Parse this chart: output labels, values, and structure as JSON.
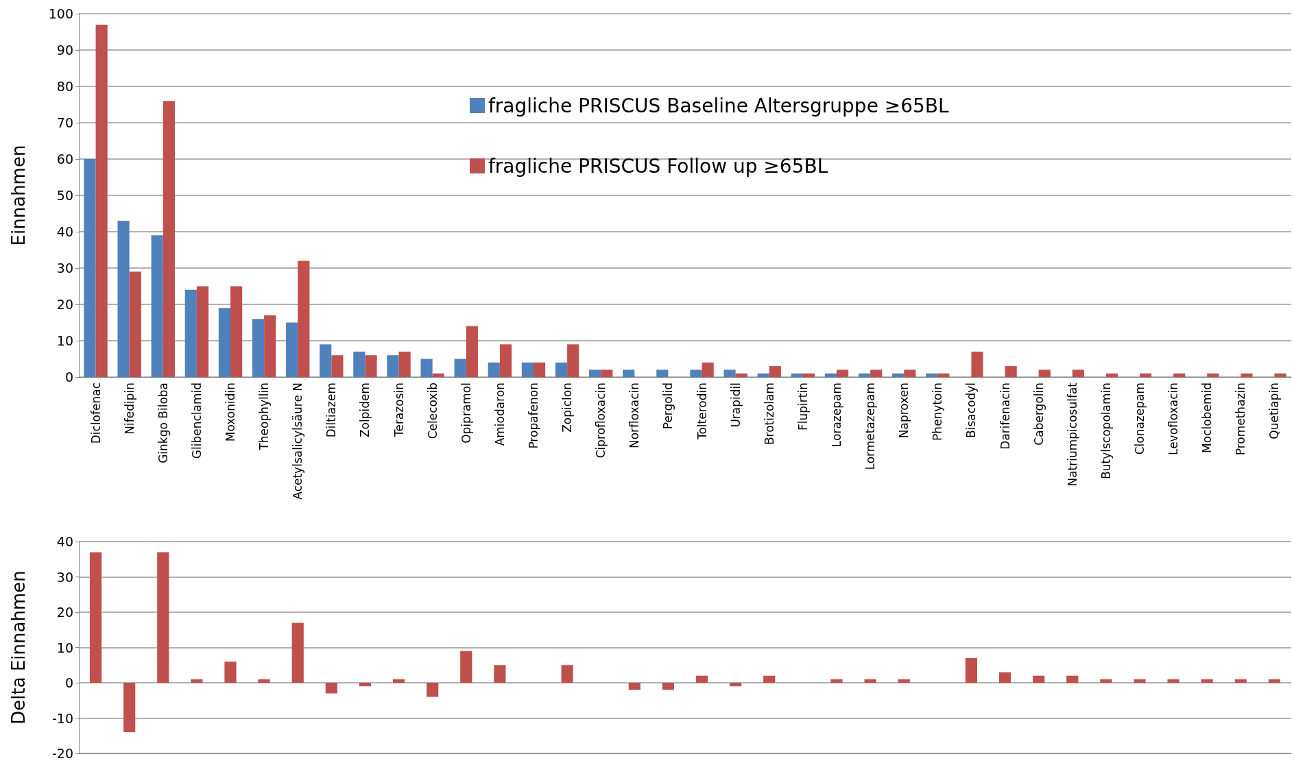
{
  "chart_data": [
    {
      "type": "bar",
      "ylabel": "Einnahmen",
      "categories": [
        "Diclofenac",
        "Nifedipin",
        "Ginkgo Biloba",
        "Glibenclamid",
        "Moxonidin",
        "Theophyllin",
        "Acetylsalicylsäure N",
        "Diltiazem",
        "Zolpidem",
        "Terazosin",
        "Celecoxib",
        "Opipramol",
        "Amiodaron",
        "Propafenon",
        "Zopiclon",
        "Ciprofloxacin",
        "Norfloxacin",
        "Pergolid",
        "Tolterodin",
        "Urapidil",
        "Brotizolam",
        "Flupirtin",
        "Lorazepam",
        "Lormetazepam",
        "Naproxen",
        "Phenytoin",
        "Bisacodyl",
        "Darifenacin",
        "Cabergolin",
        "Natriumpicosulfat",
        "Butylscopolamin",
        "Clonazepam",
        "Levofloxacin",
        "Moclobemid",
        "Promethazin",
        "Quetiapin"
      ],
      "series": [
        {
          "name": "fragliche PRISCUS Baseline Altersgruppe ≥65BL",
          "color": "#4f81bd",
          "values": [
            60,
            43,
            39,
            24,
            19,
            16,
            15,
            9,
            7,
            6,
            5,
            5,
            4,
            4,
            4,
            2,
            2,
            2,
            2,
            2,
            1,
            1,
            1,
            1,
            1,
            1,
            0,
            0,
            0,
            0,
            0,
            0,
            0,
            0,
            0,
            0
          ]
        },
        {
          "name": "fragliche PRISCUS Follow up ≥65BL",
          "color": "#c0504d",
          "values": [
            97,
            29,
            76,
            25,
            25,
            17,
            32,
            6,
            6,
            7,
            1,
            14,
            9,
            4,
            9,
            2,
            0,
            0,
            4,
            1,
            3,
            1,
            2,
            2,
            2,
            1,
            7,
            3,
            2,
            2,
            1,
            1,
            1,
            1,
            1,
            1
          ]
        }
      ],
      "ylim": [
        0,
        100
      ],
      "yticks": [
        0,
        10,
        20,
        30,
        40,
        50,
        60,
        70,
        80,
        90,
        100
      ],
      "grid": "y",
      "legend": "top"
    },
    {
      "type": "bar",
      "ylabel": "Delta Einnahmen",
      "categories": [
        null,
        null,
        null,
        null,
        null,
        null,
        null,
        null,
        null,
        null,
        null,
        null,
        null,
        null,
        null,
        null,
        null,
        null,
        null,
        null,
        null,
        null,
        null,
        null,
        null,
        null,
        null,
        null,
        null,
        null,
        null,
        null,
        null,
        null,
        null,
        null
      ],
      "series": [
        {
          "color": "#c0504d",
          "values": [
            37,
            -14,
            37,
            1,
            6,
            1,
            17,
            -3,
            -1,
            1,
            -4,
            9,
            5,
            0,
            5,
            0,
            -2,
            -2,
            2,
            -1,
            2,
            0,
            1,
            1,
            1,
            0,
            7,
            3,
            2,
            2,
            1,
            1,
            1,
            1,
            1,
            1
          ]
        }
      ],
      "ylim": [
        -20,
        40
      ],
      "yticks": [
        -20,
        -10,
        0,
        10,
        20,
        30,
        40
      ],
      "grid": "y",
      "tick_labels": "y"
    }
  ]
}
